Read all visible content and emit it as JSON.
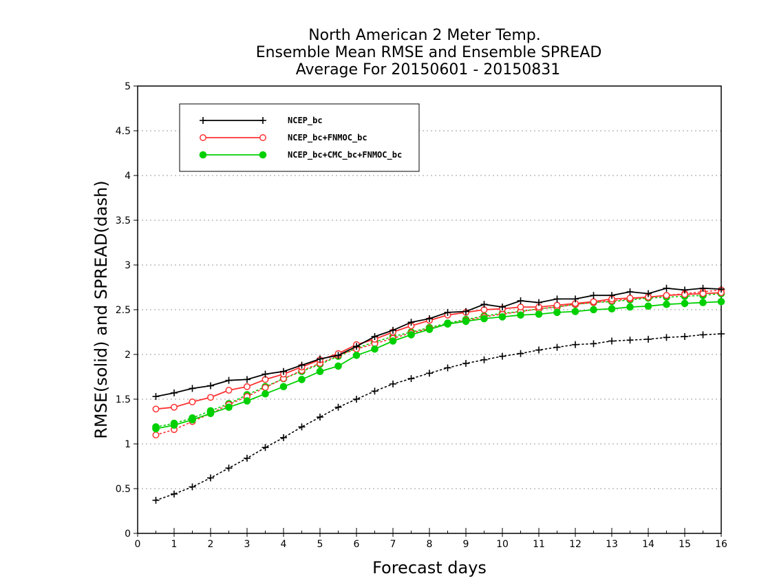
{
  "chart_data": {
    "type": "line",
    "title": [
      "North American 2 Meter Temp.",
      "Ensemble Mean RMSE and Ensemble SPREAD",
      "Average For 20150601 - 20150831"
    ],
    "xlabel": "Forecast days",
    "ylabel": "RMSE(solid) and SPREAD(dash)",
    "xlim": [
      0,
      16
    ],
    "ylim": [
      0,
      5
    ],
    "xticks": [
      "0",
      "1",
      "2",
      "3",
      "4",
      "5",
      "6",
      "7",
      "8",
      "9",
      "10",
      "11",
      "12",
      "13",
      "14",
      "15",
      "16"
    ],
    "yticks": [
      "0",
      "0.5",
      "1",
      "1.5",
      "2",
      "2.5",
      "3",
      "3.5",
      "4",
      "4.5",
      "5"
    ],
    "grid": "horizontal dotted",
    "legend_position": "top-left",
    "x": [
      0.5,
      1,
      1.5,
      2,
      2.5,
      3,
      3.5,
      4,
      4.5,
      5,
      5.5,
      6,
      6.5,
      7,
      7.5,
      8,
      8.5,
      9,
      9.5,
      10,
      10.5,
      11,
      11.5,
      12,
      12.5,
      13,
      13.5,
      14,
      14.5,
      15,
      15.5,
      16
    ],
    "series": [
      {
        "name": "NCEP_bc",
        "color": "#000000",
        "marker": "plus",
        "rmse": [
          1.53,
          1.57,
          1.62,
          1.65,
          1.71,
          1.72,
          1.78,
          1.81,
          1.88,
          1.95,
          1.99,
          2.09,
          2.2,
          2.27,
          2.36,
          2.4,
          2.47,
          2.48,
          2.56,
          2.53,
          2.6,
          2.58,
          2.62,
          2.62,
          2.66,
          2.66,
          2.7,
          2.68,
          2.74,
          2.72,
          2.74,
          2.73
        ],
        "spread": [
          0.37,
          0.44,
          0.52,
          0.62,
          0.73,
          0.84,
          0.96,
          1.07,
          1.19,
          1.3,
          1.41,
          1.5,
          1.59,
          1.67,
          1.73,
          1.79,
          1.85,
          1.9,
          1.94,
          1.98,
          2.01,
          2.05,
          2.08,
          2.11,
          2.12,
          2.15,
          2.16,
          2.17,
          2.19,
          2.2,
          2.22,
          2.23
        ]
      },
      {
        "name": "NCEP_bc+FNMOC_bc",
        "color": "#ff3030",
        "marker": "open-circle",
        "rmse": [
          1.39,
          1.41,
          1.47,
          1.52,
          1.6,
          1.64,
          1.72,
          1.78,
          1.86,
          1.94,
          2.01,
          2.11,
          2.17,
          2.25,
          2.32,
          2.38,
          2.44,
          2.47,
          2.5,
          2.51,
          2.53,
          2.53,
          2.55,
          2.57,
          2.59,
          2.62,
          2.63,
          2.64,
          2.66,
          2.67,
          2.68,
          2.69
        ],
        "spread": [
          1.1,
          1.16,
          1.25,
          1.34,
          1.44,
          1.53,
          1.63,
          1.73,
          1.82,
          1.9,
          1.99,
          2.06,
          2.12,
          2.18,
          2.24,
          2.29,
          2.34,
          2.38,
          2.42,
          2.45,
          2.48,
          2.51,
          2.53,
          2.56,
          2.58,
          2.6,
          2.62,
          2.64,
          2.66,
          2.68,
          2.7,
          2.72
        ]
      },
      {
        "name": "NCEP_bc+CMC_bc+FNMOC_bc",
        "color": "#00d000",
        "marker": "filled-circle",
        "rmse": [
          1.17,
          1.21,
          1.27,
          1.34,
          1.41,
          1.48,
          1.56,
          1.64,
          1.72,
          1.81,
          1.87,
          1.99,
          2.06,
          2.15,
          2.22,
          2.28,
          2.34,
          2.37,
          2.4,
          2.42,
          2.44,
          2.45,
          2.47,
          2.48,
          2.5,
          2.51,
          2.53,
          2.54,
          2.56,
          2.57,
          2.58,
          2.59
        ],
        "spread": [
          1.19,
          1.23,
          1.29,
          1.37,
          1.45,
          1.55,
          1.64,
          1.73,
          1.81,
          1.89,
          1.98,
          2.07,
          2.14,
          2.2,
          2.25,
          2.3,
          2.35,
          2.39,
          2.43,
          2.46,
          2.48,
          2.51,
          2.53,
          2.56,
          2.58,
          2.59,
          2.61,
          2.63,
          2.64,
          2.65,
          2.66,
          2.68
        ]
      }
    ]
  }
}
